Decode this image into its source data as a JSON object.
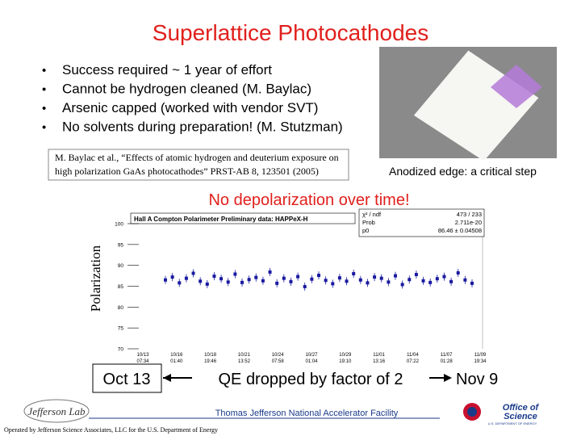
{
  "title": "Superlattice Photocathodes",
  "bullets": [
    "Success required ~ 1 year of effort",
    "Cannot be hydrogen cleaned (M. Baylac)",
    "Arsenic capped (worked with vendor SVT)",
    "No solvents during preparation! (M. Stutzman)"
  ],
  "reference": [
    "M. Baylac et al., “Effects of atomic hydrogen and deuterium exposure on",
    "high polarization GaAs photocathodes” PRST-AB 8, 123501 (2005)"
  ],
  "image_caption": "Anodized edge: a critical step",
  "headline": "No depolarization over time!",
  "plot": {
    "type": "scatter",
    "title": "Hall A Compton Polarimeter Preliminary data: HAPPeX-H",
    "y_label": "Polarization",
    "stats": [
      [
        "χ² / ndf",
        "473 / 233"
      ],
      [
        "Prob",
        "2.711e-20"
      ],
      [
        "p0",
        "86.46 ± 0.04508"
      ]
    ],
    "ylim": [
      70,
      100
    ],
    "yticks": [
      100,
      95,
      90,
      85,
      80,
      75,
      70
    ],
    "xticks": [
      "10/13 07:34",
      "10/16 01:40",
      "10/18 19:46",
      "10/21 13:52",
      "10/24 07:58",
      "10/27 01:04",
      "10/29 19:10",
      "11/01 13:16",
      "11/04 07:22",
      "11/07 01:28",
      "11/09 19:34"
    ],
    "color": "#1a1aa0",
    "values": [
      86.5,
      87.2,
      85.8,
      86.9,
      88.1,
      86.2,
      85.5,
      87.4,
      86.8,
      86.0,
      87.9,
      85.9,
      86.6,
      87.1,
      86.3,
      88.4,
      85.7,
      86.9,
      86.1,
      87.3,
      84.9,
      86.7,
      87.6,
      86.4,
      85.6,
      87.0,
      86.2,
      88.0,
      86.5,
      85.8,
      87.2,
      86.9,
      86.0,
      87.5,
      85.4,
      86.6,
      87.8,
      86.3,
      85.9,
      86.8,
      87.3,
      86.1,
      88.2,
      86.5,
      85.7
    ]
  },
  "timeline": {
    "start": "Oct 13",
    "middle": "QE dropped by factor of 2",
    "end": "Nov 9"
  },
  "footer": {
    "lab": "Thomas Jefferson National Accelerator Facility",
    "operator": "Operated by Jefferson Science Associates, LLC for the U.S. Department of Energy",
    "logo_left": "Jefferson Lab",
    "logo_right": [
      "Office of",
      "Science"
    ],
    "logo_right_sub": "U.S. DEPARTMENT OF ENERGY"
  }
}
